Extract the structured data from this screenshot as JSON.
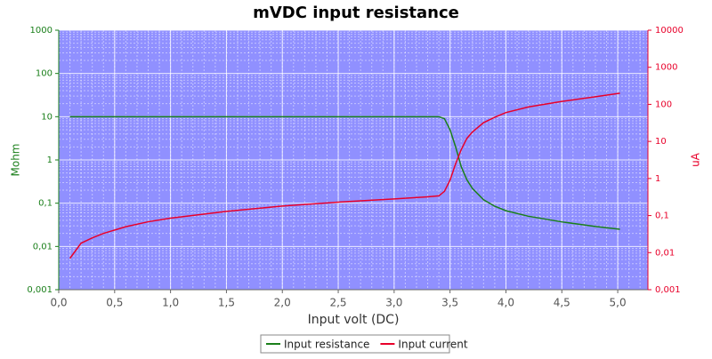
{
  "chart_data": {
    "type": "line",
    "title": "mVDC input resistance",
    "xlabel": "Input volt (DC)",
    "ylabel": "Mohm",
    "y2label": "uA",
    "x": [
      0.1,
      0.2,
      0.3,
      0.4,
      0.6,
      0.8,
      1.0,
      1.5,
      2.0,
      2.5,
      3.0,
      3.3,
      3.4,
      3.45,
      3.5,
      3.55,
      3.6,
      3.65,
      3.7,
      3.8,
      3.9,
      4.0,
      4.2,
      4.5,
      4.8,
      5.02
    ],
    "series": [
      {
        "name": "Input resistance",
        "color": "#1a7f1a",
        "axis": "y",
        "values": [
          10,
          10,
          10,
          10,
          10,
          10,
          10,
          10,
          10,
          10,
          10,
          10,
          10,
          9,
          5,
          2,
          0.7,
          0.35,
          0.22,
          0.12,
          0.085,
          0.067,
          0.05,
          0.037,
          0.029,
          0.025
        ]
      },
      {
        "name": "Input current",
        "color": "#e8002a",
        "axis": "y2",
        "values": [
          0.007,
          0.018,
          0.025,
          0.033,
          0.05,
          0.068,
          0.085,
          0.13,
          0.18,
          0.23,
          0.28,
          0.32,
          0.34,
          0.45,
          0.9,
          2.5,
          6,
          12,
          18,
          32,
          45,
          60,
          85,
          120,
          160,
          200
        ]
      }
    ],
    "xlim": [
      0,
      5.27
    ],
    "xticks": [
      {
        "value": 0,
        "label": "0,0"
      },
      {
        "value": 0.5,
        "label": "0,5"
      },
      {
        "value": 1,
        "label": "1,0"
      },
      {
        "value": 1.5,
        "label": "1,5"
      },
      {
        "value": 2,
        "label": "2,0"
      },
      {
        "value": 2.5,
        "label": "2,5"
      },
      {
        "value": 3,
        "label": "3,0"
      },
      {
        "value": 3.5,
        "label": "3,5"
      },
      {
        "value": 4,
        "label": "4,0"
      },
      {
        "value": 4.5,
        "label": "4,5"
      },
      {
        "value": 5,
        "label": "5,0"
      }
    ],
    "ylim": [
      0.001,
      1000
    ],
    "yticks": [
      {
        "value": 0.001,
        "label": "0,001"
      },
      {
        "value": 0.01,
        "label": "0,01"
      },
      {
        "value": 0.1,
        "label": "0,1"
      },
      1,
      10,
      100,
      1000
    ],
    "y2lim": [
      0.001,
      10000
    ],
    "y2ticks": [
      {
        "value": 0.001,
        "label": "0,001"
      },
      {
        "value": 0.01,
        "label": "0,01"
      },
      {
        "value": 0.1,
        "label": "0,1"
      },
      1,
      10,
      100,
      1000,
      10000
    ],
    "ylog": true,
    "y2log": true,
    "grid": true,
    "background": "#9090ff",
    "legend": "bottom"
  }
}
